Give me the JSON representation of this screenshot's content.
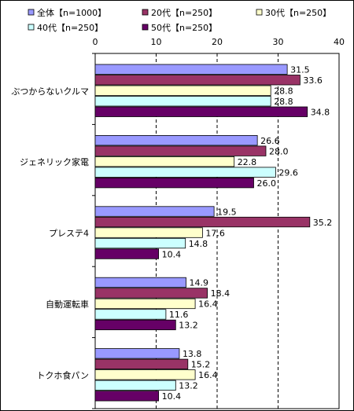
{
  "chart_data": {
    "type": "bar",
    "orientation": "horizontal",
    "categories": [
      "ぶつからないクルマ",
      "ジェネリック家電",
      "プレステ4",
      "自動運転車",
      "トクホ食パン"
    ],
    "series": [
      {
        "name": "全体【n=1000】",
        "color": "#9999ff",
        "values": [
          31.5,
          26.6,
          19.5,
          14.9,
          13.8
        ]
      },
      {
        "name": "20代【n=250】",
        "color": "#993366",
        "values": [
          33.6,
          28.0,
          35.2,
          18.4,
          15.2
        ]
      },
      {
        "name": "30代【n=250】",
        "color": "#ffffcc",
        "values": [
          28.8,
          22.8,
          17.6,
          16.4,
          16.4
        ]
      },
      {
        "name": "40代【n=250】",
        "color": "#ccffff",
        "values": [
          28.8,
          29.6,
          14.8,
          11.6,
          13.2
        ]
      },
      {
        "name": "50代【n=250】",
        "color": "#660066",
        "values": [
          34.8,
          26.0,
          10.4,
          13.2,
          10.4
        ]
      }
    ],
    "value_labels": [
      [
        "31.5",
        "26.6",
        "19.5",
        "14.9",
        "13.8"
      ],
      [
        "33.6",
        "28.0",
        "35.2",
        "18.4",
        "15.2"
      ],
      [
        "28.8",
        "22.8",
        "17.6",
        "16.4",
        "16.4"
      ],
      [
        "28.8",
        "29.6",
        "14.8",
        "11.6",
        "13.2"
      ],
      [
        "34.8",
        "26.0",
        "10.4",
        "13.2",
        "10.4"
      ]
    ],
    "xlim": [
      0,
      40
    ],
    "xticks": [
      0,
      10,
      20,
      30,
      40
    ],
    "xtick_labels": [
      "0",
      "10",
      "20",
      "30",
      "40"
    ],
    "grid": "vertical dashed",
    "legend_position": "top"
  }
}
